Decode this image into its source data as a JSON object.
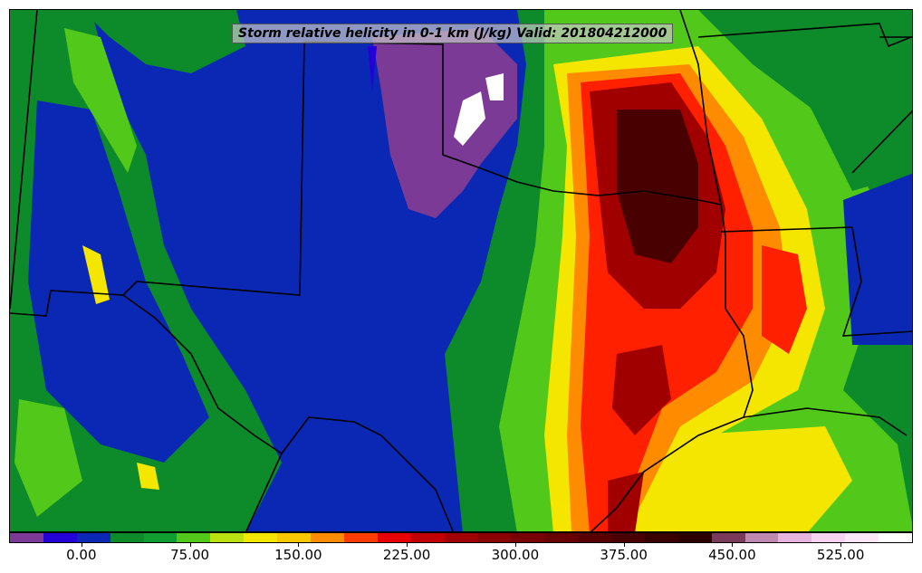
{
  "title": "Storm relative helicity in 0-1 km (J/kg) Valid: 201804212000",
  "colorbar": {
    "colors": [
      "#7b3a96",
      "#2400d8",
      "#0a28b4",
      "#0d8a2a",
      "#109e30",
      "#52c81a",
      "#b9e011",
      "#f5e600",
      "#fac800",
      "#ff8c00",
      "#ff3c00",
      "#e60000",
      "#c00000",
      "#a00000",
      "#8a0000",
      "#780000",
      "#680000",
      "#580000",
      "#480000",
      "#3a0000",
      "#2c0000",
      "#7a3a5a",
      "#c08ab0",
      "#e6b4dc",
      "#f5d2f0",
      "#fae6f7",
      "#ffffff"
    ],
    "ticks": [
      {
        "value": 0,
        "label": "0.00"
      },
      {
        "value": 75,
        "label": "75.00"
      },
      {
        "value": 150,
        "label": "150.00"
      },
      {
        "value": 225,
        "label": "225.00"
      },
      {
        "value": 300,
        "label": "300.00"
      },
      {
        "value": 375,
        "label": "375.00"
      },
      {
        "value": 450,
        "label": "450.00"
      },
      {
        "value": 525,
        "label": "525.00"
      }
    ],
    "range": [
      -50,
      575
    ]
  },
  "colors": {
    "background": "#0a28b4",
    "green": "#0d8a2a",
    "lightgreen": "#52c81a",
    "yellow": "#f5e600",
    "orange": "#ff8c00",
    "red": "#ff2000",
    "darkred": "#a00000",
    "maroon": "#480000",
    "purple": "#7b3a96",
    "border": "#000000"
  }
}
